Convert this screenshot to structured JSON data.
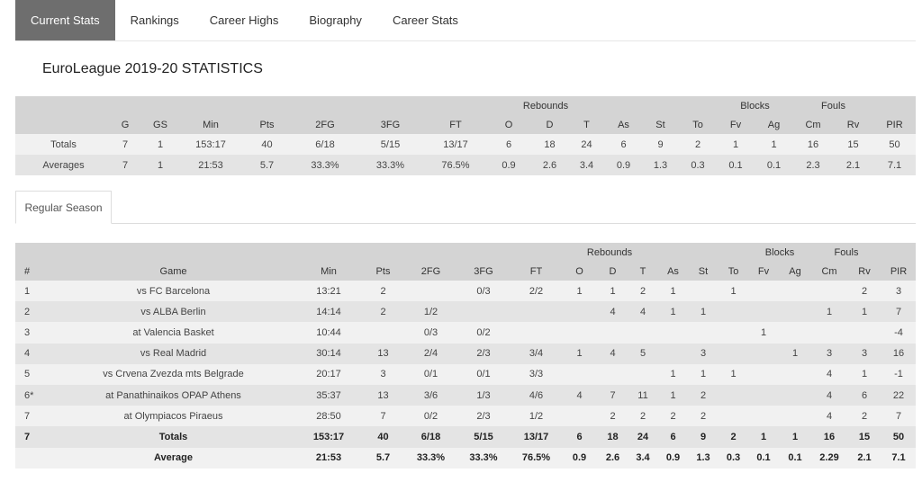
{
  "tabs": [
    "Current Stats",
    "Rankings",
    "Career Highs",
    "Biography",
    "Career Stats"
  ],
  "title": "EuroLeague 2019-20 STATISTICS",
  "summary_table": {
    "group_headers": [
      "Rebounds",
      "Blocks",
      "Fouls"
    ],
    "headers": [
      "G",
      "GS",
      "Min",
      "Pts",
      "2FG",
      "3FG",
      "FT",
      "O",
      "D",
      "T",
      "As",
      "St",
      "To",
      "Fv",
      "Ag",
      "Cm",
      "Rv",
      "PIR"
    ],
    "rows": [
      {
        "label": "Totals",
        "cells": [
          "7",
          "1",
          "153:17",
          "40",
          "6/18",
          "5/15",
          "13/17",
          "6",
          "18",
          "24",
          "6",
          "9",
          "2",
          "1",
          "1",
          "16",
          "15",
          "50"
        ]
      },
      {
        "label": "Averages",
        "cells": [
          "7",
          "1",
          "21:53",
          "5.7",
          "33.3%",
          "33.3%",
          "76.5%",
          "0.9",
          "2.6",
          "3.4",
          "0.9",
          "1.3",
          "0.3",
          "0.1",
          "0.1",
          "2.3",
          "2.1",
          "7.1"
        ]
      }
    ]
  },
  "season_tab": "Regular Season",
  "games_table": {
    "group_headers": [
      "Rebounds",
      "Blocks",
      "Fouls"
    ],
    "headers": [
      "#",
      "Game",
      "Min",
      "Pts",
      "2FG",
      "3FG",
      "FT",
      "O",
      "D",
      "T",
      "As",
      "St",
      "To",
      "Fv",
      "Ag",
      "Cm",
      "Rv",
      "PIR"
    ],
    "rows": [
      [
        "1",
        "vs FC Barcelona",
        "13:21",
        "2",
        null,
        "0/3",
        "2/2",
        "1",
        "1",
        "2",
        "1",
        null,
        "1",
        null,
        null,
        null,
        "2",
        "3"
      ],
      [
        "2",
        "vs ALBA Berlin",
        "14:14",
        "2",
        "1/2",
        null,
        null,
        null,
        "4",
        "4",
        "1",
        "1",
        null,
        null,
        null,
        "1",
        "1",
        "7"
      ],
      [
        "3",
        "at Valencia Basket",
        "10:44",
        null,
        "0/3",
        "0/2",
        null,
        null,
        null,
        null,
        null,
        null,
        null,
        "1",
        null,
        null,
        null,
        "-4"
      ],
      [
        "4",
        "vs Real Madrid",
        "30:14",
        "13",
        "2/4",
        "2/3",
        "3/4",
        "1",
        "4",
        "5",
        null,
        "3",
        null,
        null,
        "1",
        "3",
        "3",
        "16"
      ],
      [
        "5",
        "vs Crvena Zvezda mts Belgrade",
        "20:17",
        "3",
        "0/1",
        "0/1",
        "3/3",
        null,
        null,
        null,
        "1",
        "1",
        "1",
        null,
        null,
        "4",
        "1",
        "-1"
      ],
      [
        "6*",
        "at Panathinaikos OPAP Athens",
        "35:37",
        "13",
        "3/6",
        "1/3",
        "4/6",
        "4",
        "7",
        "11",
        "1",
        "2",
        null,
        null,
        null,
        "4",
        "6",
        "22"
      ],
      [
        "7",
        "at Olympiacos Piraeus",
        "28:50",
        "7",
        "0/2",
        "2/3",
        "1/2",
        null,
        "2",
        "2",
        "2",
        "2",
        null,
        null,
        null,
        "4",
        "2",
        "7"
      ],
      [
        "7",
        "Totals",
        "153:17",
        "40",
        "6/18",
        "5/15",
        "13/17",
        "6",
        "18",
        "24",
        "6",
        "9",
        "2",
        "1",
        "1",
        "16",
        "15",
        "50"
      ],
      [
        null,
        "Average",
        "21:53",
        "5.7",
        "33.3%",
        "33.3%",
        "76.5%",
        "0.9",
        "2.6",
        "3.4",
        "0.9",
        "1.3",
        "0.3",
        "0.1",
        "0.1",
        "2.29",
        "2.1",
        "7.1"
      ]
    ]
  }
}
